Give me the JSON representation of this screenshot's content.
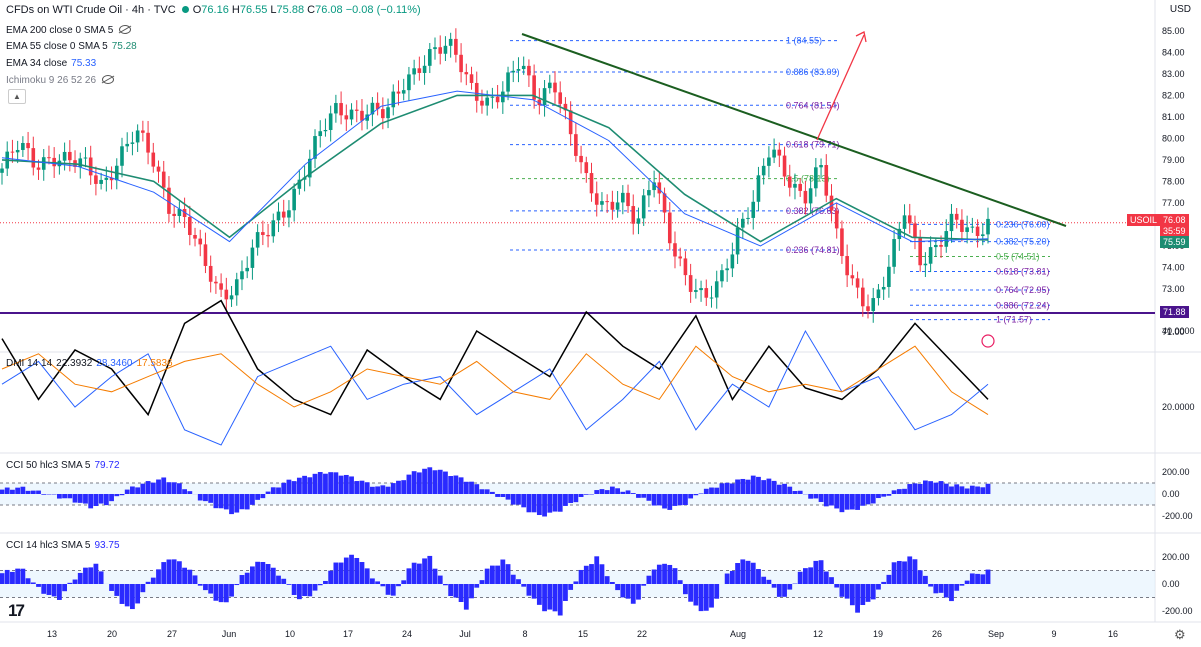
{
  "header": {
    "title": "CFDs on WTI Crude Oil · 4h · TVC",
    "o_label": "O",
    "o": "76.16",
    "h_label": "H",
    "h": "76.55",
    "l_label": "L",
    "l": "75.88",
    "c_label": "C",
    "c": "76.08",
    "change": "−0.08 (−0.11%)",
    "currency": "USD"
  },
  "indicators": [
    {
      "label": "EMA 200 close 0 SMA 5",
      "value": ""
    },
    {
      "label": "EMA 55 close 0 SMA 5",
      "value": "75.28"
    },
    {
      "label": "EMA 34 close",
      "value": "75.33"
    },
    {
      "label": "Ichimoku 9 26 52 26",
      "value": ""
    }
  ],
  "dmi": {
    "label": "DMI 14 14",
    "v1": "22.3932",
    "v2": "28.3460",
    "v3": "17.5836"
  },
  "cci50": {
    "label": "CCI 50 hlc3 SMA 5",
    "value": "79.72"
  },
  "cci14": {
    "label": "CCI 14 hlc3 SMA 5",
    "value": "93.75"
  },
  "colors": {
    "up": "#089981",
    "down": "#f23645",
    "ema55": "#1e8c72",
    "ema34": "#2962ff",
    "trend": "#1b5e20",
    "support": "#4a148c",
    "fib": "#2962ff",
    "dmi_adx": "#000000",
    "dmi_plus": "#2962ff",
    "dmi_minus": "#f57c00",
    "cci": "#2a2aff"
  },
  "chart_data": [
    {
      "type": "candlestick",
      "title": "CFDs on WTI Crude Oil · 4h · TVC",
      "y_axis_ticks": [
        "85.00",
        "84.00",
        "83.00",
        "82.00",
        "81.00",
        "80.00",
        "79.00",
        "78.00",
        "77.00",
        "76.00",
        "75.00",
        "74.00",
        "73.00",
        "72.00",
        "71.00"
      ],
      "x_axis_ticks": [
        "13",
        "20",
        "27",
        "Jun",
        "10",
        "17",
        "24",
        "Jul",
        "8",
        "15",
        "22",
        "Aug",
        "12",
        "19",
        "26",
        "Sep",
        "9",
        "16"
      ],
      "close_path": [
        [
          "13",
          78.6
        ],
        [
          "15",
          79.6
        ],
        [
          "17",
          78.8
        ],
        [
          "20",
          79.3
        ],
        [
          "22",
          78.9
        ],
        [
          "25",
          78.6
        ],
        [
          "27",
          77.9
        ],
        [
          "29",
          79.2
        ],
        [
          "30",
          80.2
        ],
        [
          "31",
          79.0
        ],
        [
          "Jun",
          77.0
        ],
        [
          "2",
          76.3
        ],
        [
          "3",
          74.2
        ],
        [
          "4",
          72.7
        ],
        [
          "6",
          73.3
        ],
        [
          "8",
          74.9
        ],
        [
          "10",
          75.6
        ],
        [
          "12",
          76.8
        ],
        [
          "14",
          78.5
        ],
        [
          "17",
          80.1
        ],
        [
          "19",
          81.2
        ],
        [
          "21",
          81.3
        ],
        [
          "24",
          81.4
        ],
        [
          "26",
          81.0
        ],
        [
          "28",
          82.5
        ],
        [
          "Jul",
          83.6
        ],
        [
          "3",
          84.2
        ],
        [
          "5",
          84.0
        ],
        [
          "7",
          82.5
        ],
        [
          "9",
          81.8
        ],
        [
          "11",
          82.1
        ],
        [
          "12",
          83.5
        ],
        [
          "15",
          81.9
        ],
        [
          "17",
          82.8
        ],
        [
          "19",
          80.0
        ],
        [
          "22",
          77.9
        ],
        [
          "24",
          77.0
        ],
        [
          "26",
          77.3
        ],
        [
          "29",
          75.8
        ],
        [
          "31",
          78.4
        ],
        [
          "Aug",
          75.5
        ],
        [
          "2",
          73.2
        ],
        [
          "5",
          72.3
        ],
        [
          "6",
          73.6
        ],
        [
          "8",
          75.7
        ],
        [
          "10",
          77.0
        ],
        [
          "12",
          79.6
        ],
        [
          "13",
          78.4
        ],
        [
          "15",
          77.2
        ],
        [
          "16",
          78.5
        ],
        [
          "19",
          75.3
        ],
        [
          "21",
          73.3
        ],
        [
          "22",
          71.9
        ],
        [
          "23",
          73.6
        ],
        [
          "26",
          76.9
        ],
        [
          "27",
          74.4
        ],
        [
          "28",
          74.8
        ],
        [
          "29",
          76.2
        ],
        [
          "30",
          75.8
        ],
        [
          "30b",
          76.08
        ]
      ],
      "ema55_path": [
        [
          "13",
          79.0
        ],
        [
          "27",
          78.8
        ],
        [
          "Jun",
          78.0
        ],
        [
          "10",
          75.4
        ],
        [
          "24",
          78.2
        ],
        [
          "Jul",
          80.7
        ],
        [
          "8",
          82.0
        ],
        [
          "15",
          82.0
        ],
        [
          "22",
          80.5
        ],
        [
          "Aug",
          77.4
        ],
        [
          "12",
          75.2
        ],
        [
          "19",
          77.2
        ],
        [
          "26",
          75.4
        ],
        [
          "30",
          75.28
        ]
      ],
      "ema34_path": [
        [
          "13",
          79.1
        ],
        [
          "27",
          78.7
        ],
        [
          "Jun",
          77.5
        ],
        [
          "10",
          75.2
        ],
        [
          "24",
          78.8
        ],
        [
          "Jul",
          81.5
        ],
        [
          "8",
          82.2
        ],
        [
          "15",
          81.8
        ],
        [
          "22",
          79.9
        ],
        [
          "Aug",
          76.5
        ],
        [
          "12",
          75.0
        ],
        [
          "19",
          77.0
        ],
        [
          "26",
          75.2
        ],
        [
          "30",
          75.33
        ]
      ],
      "trendline": {
        "start": [
          "7",
          84.55
        ],
        "end": [
          "Sep+8",
          75.9
        ]
      },
      "support_level": "71.88",
      "fib_levels": [
        {
          "ratio": "1",
          "price": "84.55"
        },
        {
          "ratio": "0.886",
          "price": "83.09"
        },
        {
          "ratio": "0.764",
          "price": "81.54"
        },
        {
          "ratio": "0.618",
          "price": "79.71"
        },
        {
          "ratio": "0.5",
          "price": "78.13"
        },
        {
          "ratio": "0.382",
          "price": "76.63"
        },
        {
          "ratio": "0.236",
          "price": "74.81"
        }
      ],
      "fib_levels_2": [
        {
          "ratio": "0.236",
          "price": "76.00"
        },
        {
          "ratio": "0.382",
          "price": "75.20"
        },
        {
          "ratio": "0.5",
          "price": "74.51"
        },
        {
          "ratio": "0.618",
          "price": "73.81"
        },
        {
          "ratio": "0.764",
          "price": "72.95"
        },
        {
          "ratio": "0.886",
          "price": "72.24"
        },
        {
          "ratio": "1",
          "price": "71.57"
        }
      ],
      "price_tag": {
        "symbol": "USOIL",
        "price": "76.08",
        "countdown": "35:59"
      },
      "ema_tag_1": "75.59",
      "ema_tag_2": "71.88"
    },
    {
      "type": "line",
      "title": "DMI 14 14",
      "y_axis_ticks": [
        "40.0000",
        "20.0000"
      ],
      "series": [
        {
          "name": "22.3932",
          "values": [
            38,
            22,
            35,
            30,
            18,
            42,
            48,
            30,
            22,
            18,
            35,
            28,
            22,
            40,
            34,
            28,
            45,
            36,
            30,
            44,
            22,
            36,
            25,
            22,
            30,
            42,
            32,
            22
          ]
        },
        {
          "name": "28.3460",
          "values": [
            26,
            32,
            20,
            28,
            34,
            14,
            10,
            28,
            32,
            36,
            22,
            26,
            28,
            18,
            24,
            30,
            14,
            22,
            32,
            14,
            26,
            20,
            40,
            24,
            28,
            14,
            18,
            26
          ]
        },
        {
          "name": "17.5836",
          "values": [
            30,
            34,
            26,
            24,
            28,
            32,
            34,
            26,
            20,
            24,
            30,
            28,
            26,
            32,
            24,
            22,
            34,
            26,
            22,
            36,
            28,
            24,
            26,
            24,
            30,
            36,
            24,
            18
          ]
        }
      ]
    },
    {
      "type": "bar",
      "title": "CCI 50 hlc3 SMA 5",
      "y_axis_ticks": [
        "200.00",
        "0.00",
        "-200.00"
      ],
      "values": [
        40,
        60,
        20,
        -20,
        -60,
        -120,
        -80,
        40,
        100,
        140,
        80,
        -40,
        -120,
        -180,
        -100,
        40,
        120,
        160,
        200,
        180,
        120,
        60,
        100,
        200,
        240,
        180,
        120,
        40,
        -40,
        -120,
        -200,
        -160,
        -60,
        20,
        60,
        20,
        -60,
        -140,
        -100,
        20,
        80,
        120,
        160,
        120,
        60,
        -20,
        -100,
        -160,
        -120,
        -40,
        40,
        100,
        120,
        80,
        60,
        79.72
      ]
    },
    {
      "type": "bar",
      "title": "CCI 14 hlc3 SMA 5",
      "y_axis_ticks": [
        "200.00",
        "0.00",
        "-200.00"
      ],
      "values": [
        80,
        120,
        -40,
        -120,
        60,
        160,
        -80,
        -200,
        40,
        200,
        120,
        -60,
        -160,
        80,
        180,
        60,
        -120,
        -40,
        160,
        220,
        40,
        -100,
        140,
        200,
        -60,
        -180,
        100,
        180,
        -20,
        -180,
        -220,
        80,
        200,
        -40,
        -160,
        120,
        160,
        -140,
        -220,
        80,
        200,
        60,
        -120,
        100,
        180,
        -60,
        -200,
        -80,
        160,
        200,
        -40,
        -120,
        60,
        93.75
      ]
    }
  ]
}
